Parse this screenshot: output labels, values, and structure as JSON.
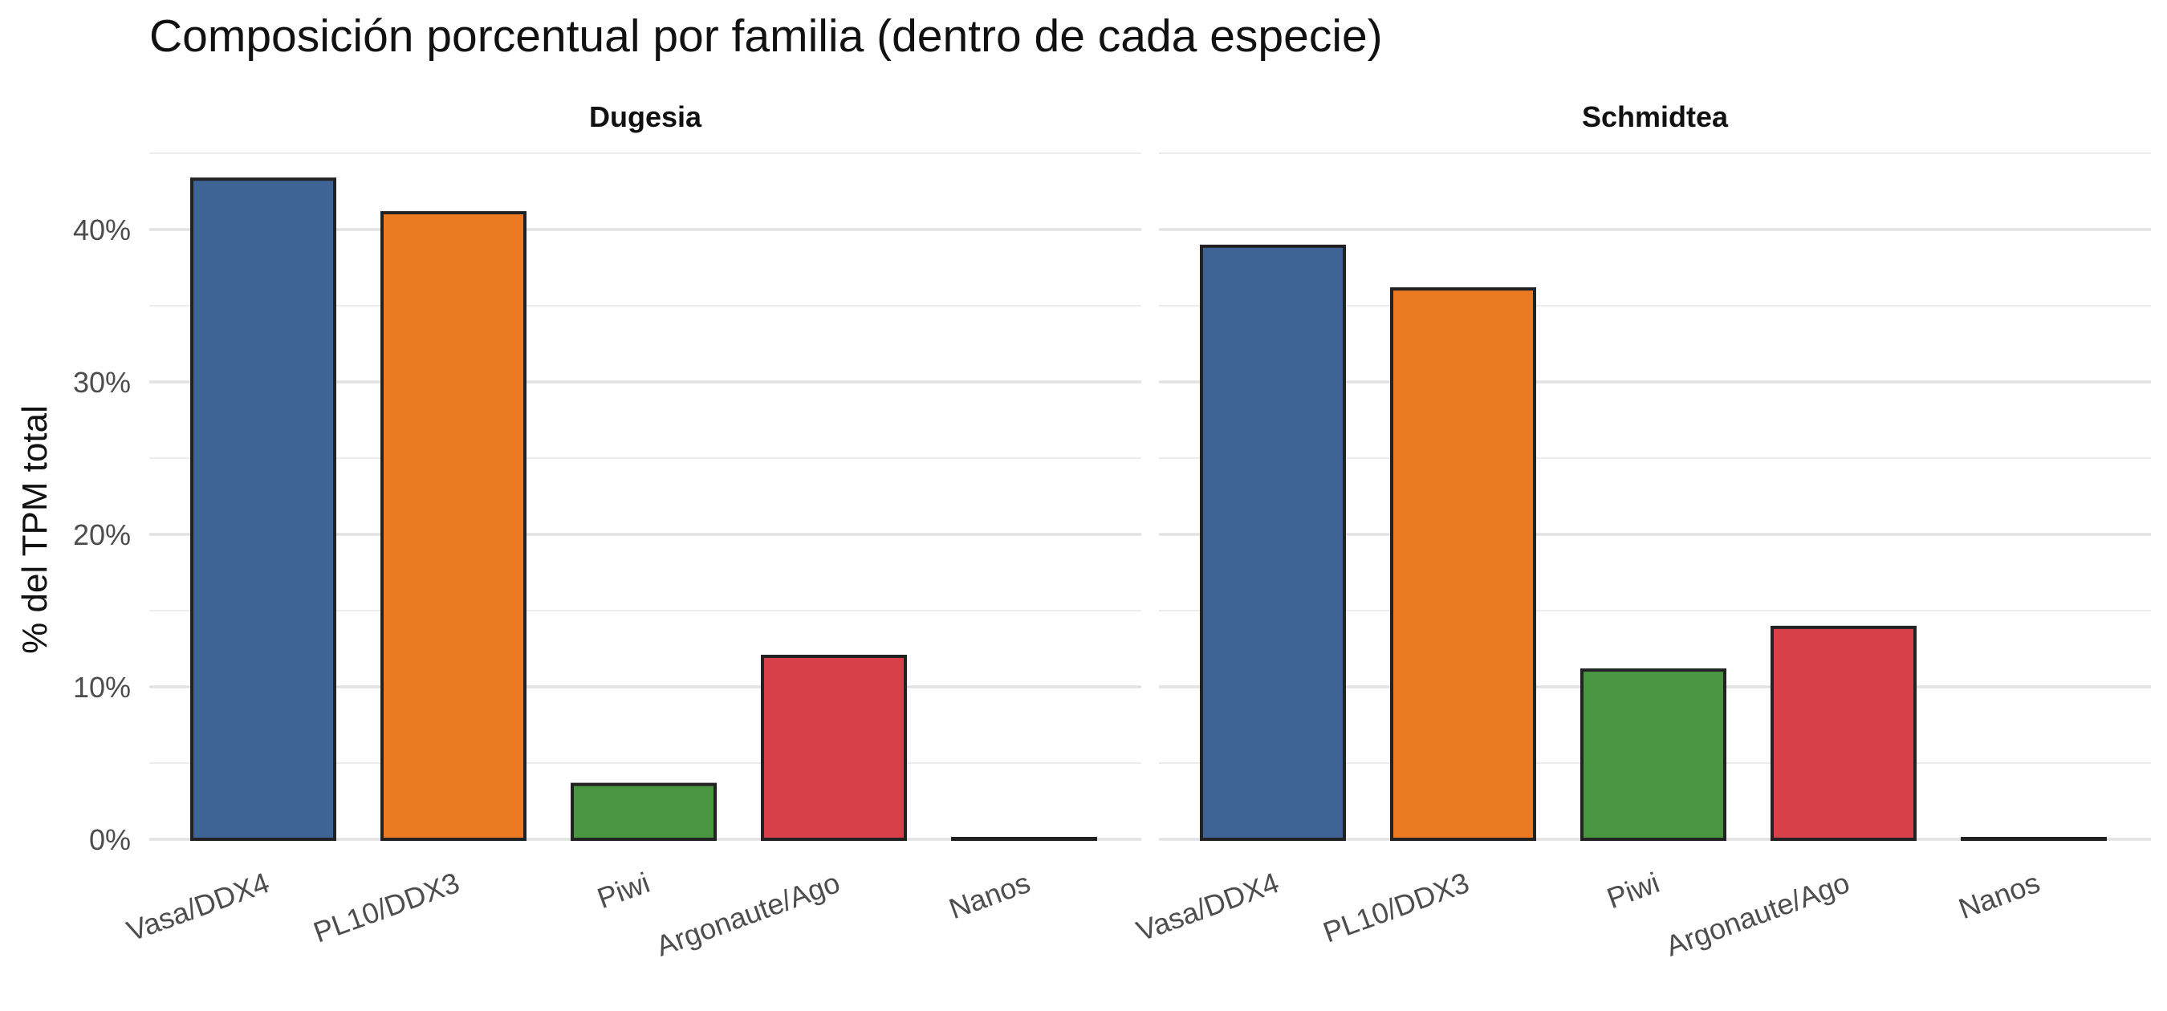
{
  "chart_data": {
    "type": "bar",
    "title": "Composición porcentual por familia (dentro de cada especie)",
    "ylabel": "% del TPM total",
    "xlabel": "",
    "ylim": [
      0,
      45
    ],
    "yticks": [
      0,
      10,
      20,
      30,
      40
    ],
    "ytick_labels": [
      "0%",
      "10%",
      "20%",
      "30%",
      "40%"
    ],
    "grid": true,
    "categories": [
      "Vasa/DDX4",
      "PL10/DDX3",
      "Piwi",
      "Argonaute/Ago",
      "Nanos"
    ],
    "colors": [
      "#3d6495",
      "#ec7a23",
      "#4a9540",
      "#d73f49",
      "#222222"
    ],
    "facets": [
      {
        "name": "Dugesia",
        "values": [
          43.3,
          41.1,
          3.6,
          12.0,
          0.05
        ]
      },
      {
        "name": "Schmidtea",
        "values": [
          38.9,
          36.1,
          11.1,
          13.9,
          0.05
        ]
      }
    ]
  }
}
